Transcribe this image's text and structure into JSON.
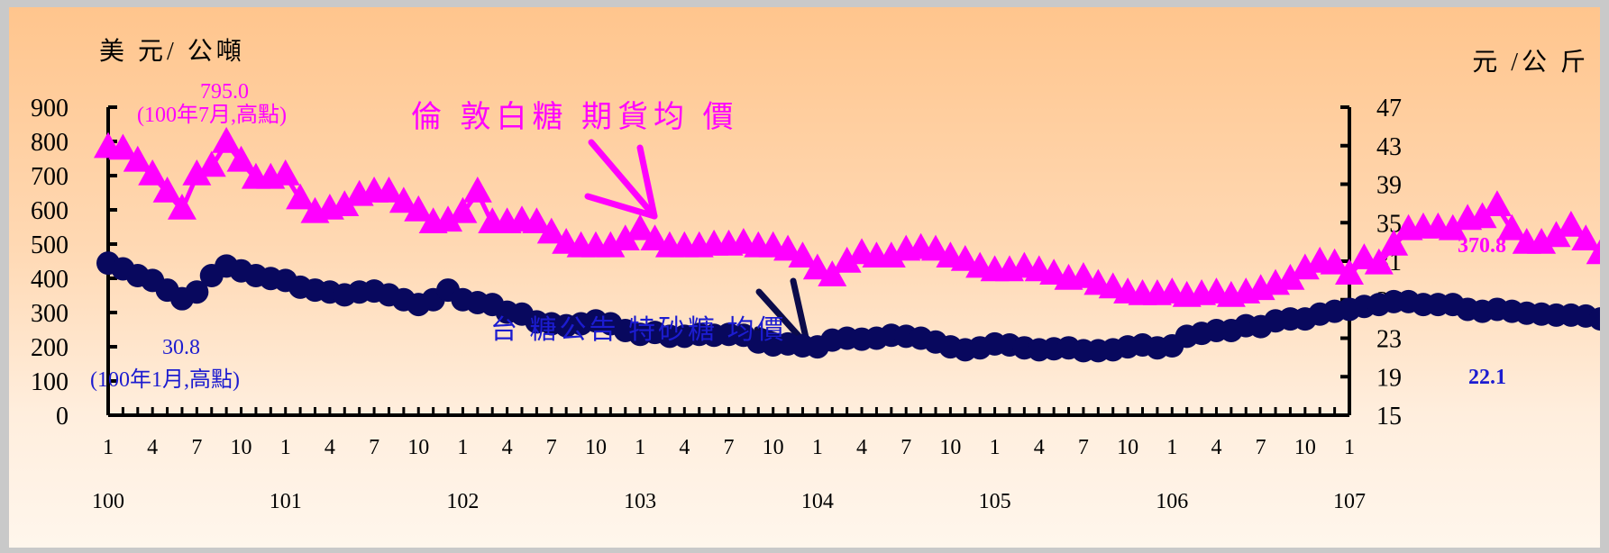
{
  "chart_data": {
    "type": "line",
    "y_left_unit": "美 元/ 公噸",
    "y_right_unit": "元 /公 斤",
    "ylim_left": [
      0,
      900
    ],
    "ylim_right": [
      15,
      47
    ],
    "yticks_left": [
      "0",
      "100",
      "200",
      "300",
      "400",
      "500",
      "600",
      "700",
      "800",
      "900"
    ],
    "yticks_right": [
      "15",
      "19",
      "23",
      "27",
      "31",
      "35",
      "39",
      "43",
      "47"
    ],
    "month_ticks": [
      "1",
      "4",
      "7",
      "10",
      "1",
      "4",
      "7",
      "10",
      "1",
      "4",
      "7",
      "10",
      "1",
      "4",
      "7",
      "10",
      "1",
      "4",
      "7",
      "10",
      "1",
      "4",
      "7",
      "10",
      "1",
      "4",
      "7",
      "10",
      "1"
    ],
    "year_ticks": [
      "100",
      "101",
      "102",
      "103",
      "104",
      "105",
      "106",
      "107"
    ],
    "series": [
      {
        "name": "倫 敦白糖 期貨均 價",
        "axis": "left",
        "color": "#ff00ff",
        "marker": "triangle",
        "values": [
          780,
          775,
          740,
          700,
          650,
          600,
          700,
          725,
          795,
          740,
          690,
          690,
          700,
          630,
          590,
          600,
          610,
          640,
          650,
          650,
          620,
          595,
          560,
          565,
          590,
          650,
          560,
          560,
          565,
          560,
          530,
          500,
          490,
          490,
          490,
          510,
          540,
          510,
          490,
          490,
          490,
          495,
          495,
          500,
          490,
          490,
          480,
          460,
          425,
          405,
          445,
          470,
          460,
          460,
          480,
          485,
          480,
          460,
          450,
          430,
          420,
          420,
          430,
          420,
          410,
          395,
          400,
          380,
          370,
          355,
          350,
          350,
          355,
          345,
          350,
          355,
          345,
          355,
          365,
          380,
          395,
          425,
          445,
          440,
          410,
          455,
          440,
          495,
          540,
          545,
          545,
          540,
          570,
          575,
          610,
          540,
          500,
          500,
          520,
          550,
          510,
          470,
          440,
          420,
          410,
          395,
          380,
          390,
          400,
          395,
          395,
          380,
          390,
          370
        ]
      },
      {
        "name": "台 糖公告 特砂糖 均價",
        "axis": "right",
        "color": "#08085e",
        "marker": "circle",
        "values": [
          30.8,
          30.2,
          29.5,
          29.0,
          28.0,
          27.1,
          27.8,
          29.5,
          30.5,
          30.0,
          29.5,
          29.2,
          29.0,
          28.3,
          28.0,
          27.8,
          27.5,
          27.8,
          27.9,
          27.5,
          27.0,
          26.5,
          27.0,
          28.0,
          27.0,
          26.7,
          26.5,
          25.7,
          25.5,
          24.7,
          24.5,
          24.3,
          24.5,
          24.8,
          24.5,
          23.8,
          23.4,
          23.6,
          23.2,
          23.2,
          23.4,
          23.3,
          23.4,
          23.3,
          22.6,
          22.3,
          22.4,
          22.2,
          22.1,
          22.8,
          23.0,
          22.9,
          23.0,
          23.3,
          23.2,
          23.0,
          22.6,
          22.1,
          21.8,
          22.0,
          22.4,
          22.3,
          22.0,
          21.8,
          21.9,
          22.0,
          21.7,
          21.7,
          21.8,
          22.1,
          22.3,
          22.0,
          22.2,
          23.2,
          23.5,
          23.8,
          23.8,
          24.3,
          24.2,
          24.8,
          25.0,
          25.0,
          25.5,
          25.8,
          26.0,
          26.3,
          26.5,
          26.8,
          26.8,
          26.5,
          26.5,
          26.5,
          26.0,
          25.8,
          26.0,
          25.8,
          25.6,
          25.5,
          25.4,
          25.4,
          25.3,
          25.0,
          24.5,
          24.8,
          24.5,
          24.5,
          24.3,
          23.5,
          23.2,
          23.0,
          22.7,
          22.5,
          22.1,
          22.1
        ]
      }
    ],
    "annotations": {
      "sugar_london_high_value": "795.0",
      "sugar_london_high_label": "(100年7月,高點)",
      "taisugar_high_value": "30.8",
      "taisugar_high_label": "(100年1月,高點)",
      "sugar_london_last": "370.8",
      "taisugar_last": "22.1"
    },
    "grid": false,
    "legend": "none (inline series labels)"
  }
}
